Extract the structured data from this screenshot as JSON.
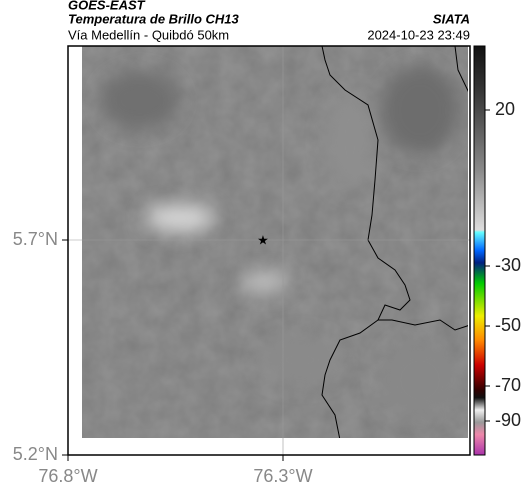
{
  "header": {
    "satellite": "GOES-EAST",
    "product": "Temperatura de Brillo CH13",
    "route": "Vía Medellín - Quibdó 50km",
    "source": "SIATA",
    "datetime": "2024-10-23 23:49"
  },
  "map": {
    "lat_ticks": [
      "5.7°N",
      "5.2°N"
    ],
    "lon_ticks": [
      "76.8°W",
      "76.3°W"
    ],
    "colorbar_ticks": [
      20,
      -30,
      -50,
      -70,
      -90
    ]
  }
}
